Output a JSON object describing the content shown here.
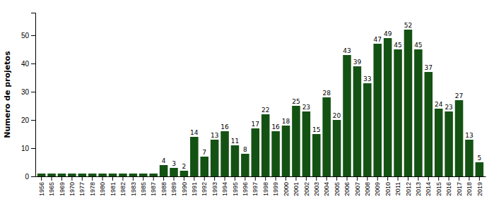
{
  "chart_data": {
    "type": "bar",
    "y_label": "Numero de projetos",
    "categories": [
      "1956",
      "1965",
      "1969",
      "1970",
      "1977",
      "1978",
      "1980",
      "1981",
      "1982",
      "1983",
      "1985",
      "1987",
      "1988",
      "1989",
      "1990",
      "1991",
      "1992",
      "1993",
      "1994",
      "1995",
      "1996",
      "1997",
      "1998",
      "1999",
      "2000",
      "2001",
      "2002",
      "2003",
      "2004",
      "2005",
      "2006",
      "2007",
      "2008",
      "2009",
      "2010",
      "2011",
      "2012",
      "2013",
      "2014",
      "2015",
      "2016",
      "2017",
      "2018",
      "2019"
    ],
    "values": [
      1,
      1,
      1,
      1,
      1,
      1,
      1,
      1,
      1,
      1,
      1,
      1,
      4,
      3,
      2,
      14,
      7,
      13,
      16,
      11,
      8,
      17,
      22,
      16,
      18,
      25,
      23,
      15,
      28,
      20,
      43,
      39,
      33,
      47,
      49,
      45,
      52,
      45,
      37,
      24,
      23,
      27,
      13,
      5
    ],
    "value_labels": [
      null,
      null,
      null,
      null,
      null,
      null,
      null,
      null,
      null,
      null,
      null,
      null,
      "4",
      "3",
      "2",
      "14",
      "7",
      "13",
      "16",
      "11",
      "8",
      "17",
      "22",
      "16",
      "18",
      "25",
      "23",
      "15",
      "28",
      "20",
      "43",
      "39",
      "33",
      "47",
      "49",
      "45",
      "52",
      "45",
      "37",
      "24",
      "23",
      "27",
      "13",
      "5"
    ],
    "color": "#145214",
    "ylim": [
      0,
      58
    ],
    "yticks": [
      0,
      10,
      20,
      30,
      40,
      50
    ],
    "grid": false,
    "data_labels": true
  }
}
